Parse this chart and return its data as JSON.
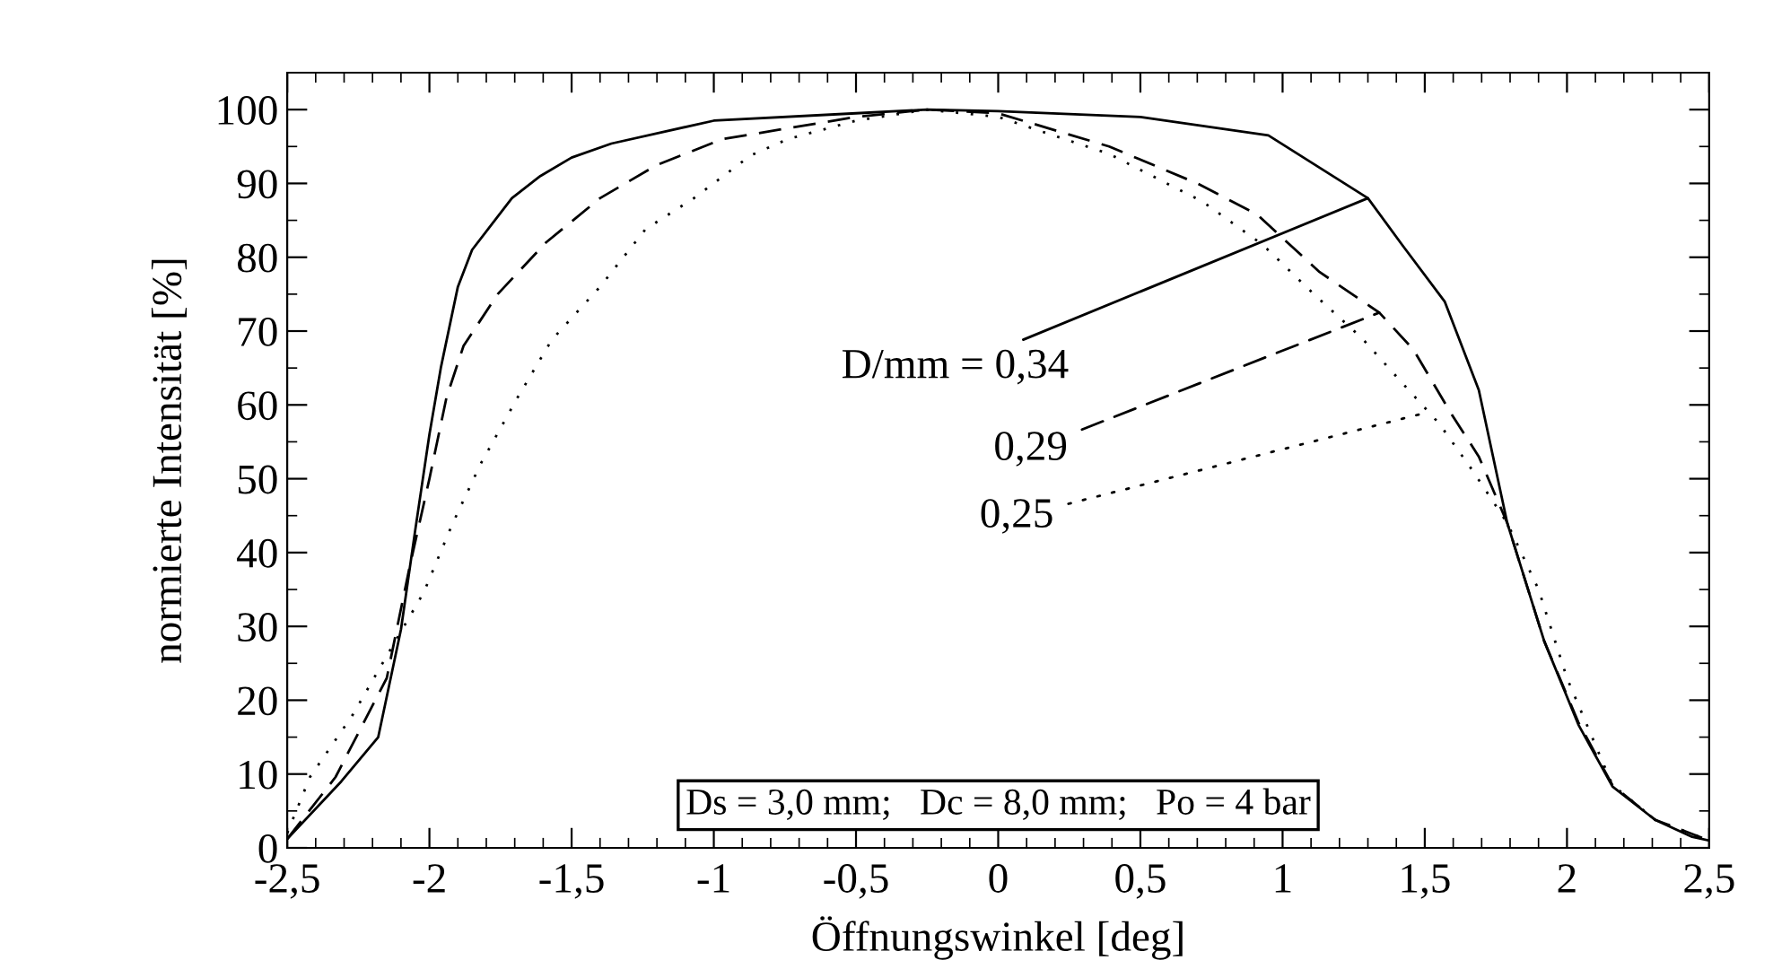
{
  "chart_data": {
    "type": "line",
    "xlabel": "Öffnungswinkel [deg]",
    "ylabel": "normierte Intensität [%]",
    "xlim": [
      -2.5,
      2.5
    ],
    "ylim": [
      0,
      105
    ],
    "xticks": [
      {
        "value": -2.5,
        "label": "-2,5"
      },
      {
        "value": -2,
        "label": "-2"
      },
      {
        "value": -1.5,
        "label": "-1,5"
      },
      {
        "value": -1,
        "label": "-1"
      },
      {
        "value": -0.5,
        "label": "-0,5"
      },
      0,
      {
        "value": 0.5,
        "label": "0,5"
      },
      1,
      {
        "value": 1.5,
        "label": "1,5"
      },
      2,
      {
        "value": 2.5,
        "label": "2,5"
      }
    ],
    "yticks": [
      0,
      10,
      20,
      30,
      40,
      50,
      60,
      70,
      80,
      90,
      100
    ],
    "grid": false,
    "legend": false,
    "marker": "none",
    "series": [
      {
        "color": "#000000",
        "line_style": "solid",
        "x": [
          -2.5,
          -2.31,
          -2.18,
          -2.1,
          -2.05,
          -2.0,
          -1.96,
          -1.9,
          -1.85,
          -1.71,
          -1.61,
          -1.5,
          -1.36,
          -1.0,
          -0.5,
          -0.25,
          0.0,
          0.5,
          0.95,
          1.3,
          1.42,
          1.57,
          1.69,
          1.79,
          1.92,
          2.04,
          2.16,
          2.31,
          2.44,
          2.5
        ],
        "values": [
          1.2,
          9,
          15,
          29.6,
          43,
          56,
          65,
          76,
          81,
          88,
          91,
          93.5,
          95.4,
          98.5,
          99.5,
          100,
          99.8,
          99,
          96.5,
          88,
          81.7,
          74,
          62,
          44,
          28,
          16.7,
          8.3,
          3.8,
          1.5,
          1
        ]
      },
      {
        "color": "#000000",
        "line_style": "dashed",
        "x": [
          -2.5,
          -2.33,
          -2.15,
          -2.07,
          -2.0,
          -1.94,
          -1.88,
          -1.76,
          -1.59,
          -1.4,
          -1.2,
          -0.97,
          -0.5,
          -0.25,
          0.0,
          0.39,
          0.7,
          0.91,
          1.13,
          1.34,
          1.46,
          1.59,
          1.69,
          1.79,
          1.92,
          2.04,
          2.16,
          2.31,
          2.5
        ],
        "values": [
          1.2,
          9.6,
          23,
          38,
          50,
          61,
          68,
          75,
          82,
          88,
          92.5,
          96,
          99,
          100,
          99.5,
          95,
          90,
          85.8,
          78,
          72.5,
          67.5,
          59,
          53,
          44,
          28,
          17,
          8.5,
          3.8,
          1
        ]
      },
      {
        "color": "#000000",
        "line_style": "dotted",
        "x": [
          -2.5,
          -2.42,
          -2.27,
          -2.15,
          -2.02,
          -1.92,
          -1.82,
          -1.69,
          -1.57,
          -1.4,
          -1.24,
          -1.07,
          -0.87,
          -0.74,
          -0.5,
          -0.25,
          0.0,
          0.39,
          0.72,
          0.93,
          1.11,
          1.28,
          1.42,
          1.55,
          1.67,
          1.79,
          1.9,
          2.0,
          2.16,
          2.31,
          2.5
        ],
        "values": [
          2,
          9.6,
          18,
          26,
          34.6,
          43.8,
          52,
          61,
          68.8,
          76,
          83.8,
          88,
          93.8,
          96,
          98.5,
          100,
          99,
          94,
          87.5,
          81.7,
          75,
          69,
          63,
          57.5,
          51,
          44,
          35,
          23,
          8.5,
          3.8,
          1
        ]
      }
    ],
    "annotations": [
      {
        "text": "D/mm = 0,34",
        "x": 1.3,
        "y": 88
      },
      {
        "text": "0,29",
        "x": 1.34,
        "y": 72.5
      },
      {
        "text": "0,25",
        "x": 1.51,
        "y": 59
      },
      "Ds = 3,0 mm;   Dc = 8,0 mm;   Po = 4 bar"
    ]
  }
}
